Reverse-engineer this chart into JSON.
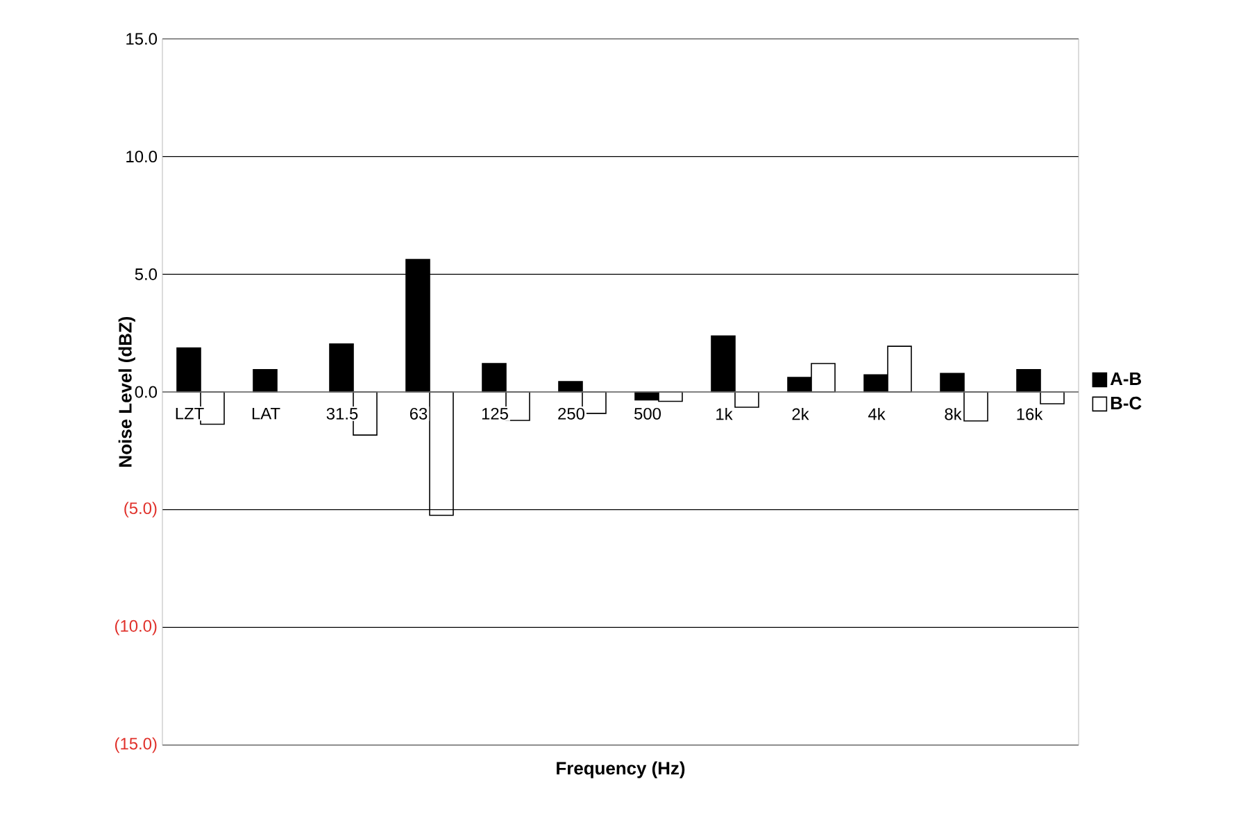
{
  "chart_data": {
    "type": "bar",
    "xlabel": "Frequency (Hz)",
    "ylabel": "Noise Level (dBZ)",
    "categories": [
      "LZT",
      "LAT",
      "31.5",
      "63",
      "125",
      "250",
      "500",
      "1k",
      "2k",
      "4k",
      "8k",
      "16k"
    ],
    "series": [
      {
        "name": "A-B",
        "color": "#000000",
        "values": [
          1.87,
          0.95,
          2.04,
          5.63,
          1.21,
          0.44,
          -0.34,
          2.38,
          0.62,
          0.73,
          0.79,
          0.95
        ]
      },
      {
        "name": "B-C",
        "color": "#ffffff",
        "values": [
          -1.37,
          null,
          -1.83,
          -5.24,
          -1.21,
          -0.91,
          -0.4,
          -0.65,
          1.21,
          1.94,
          -1.23,
          -0.5
        ]
      }
    ],
    "ylim": [
      -15,
      15
    ],
    "yticks": [
      {
        "value": -15,
        "label": "(15.0)"
      },
      {
        "value": -10,
        "label": "(10.0)"
      },
      {
        "value": -5,
        "label": "(5.0)"
      },
      {
        "value": 0,
        "label": "0.0"
      },
      {
        "value": 5,
        "label": "5.0"
      },
      {
        "value": 10,
        "label": "10.0"
      },
      {
        "value": 15,
        "label": "15.0"
      }
    ],
    "grid": "y",
    "legend": "right"
  }
}
